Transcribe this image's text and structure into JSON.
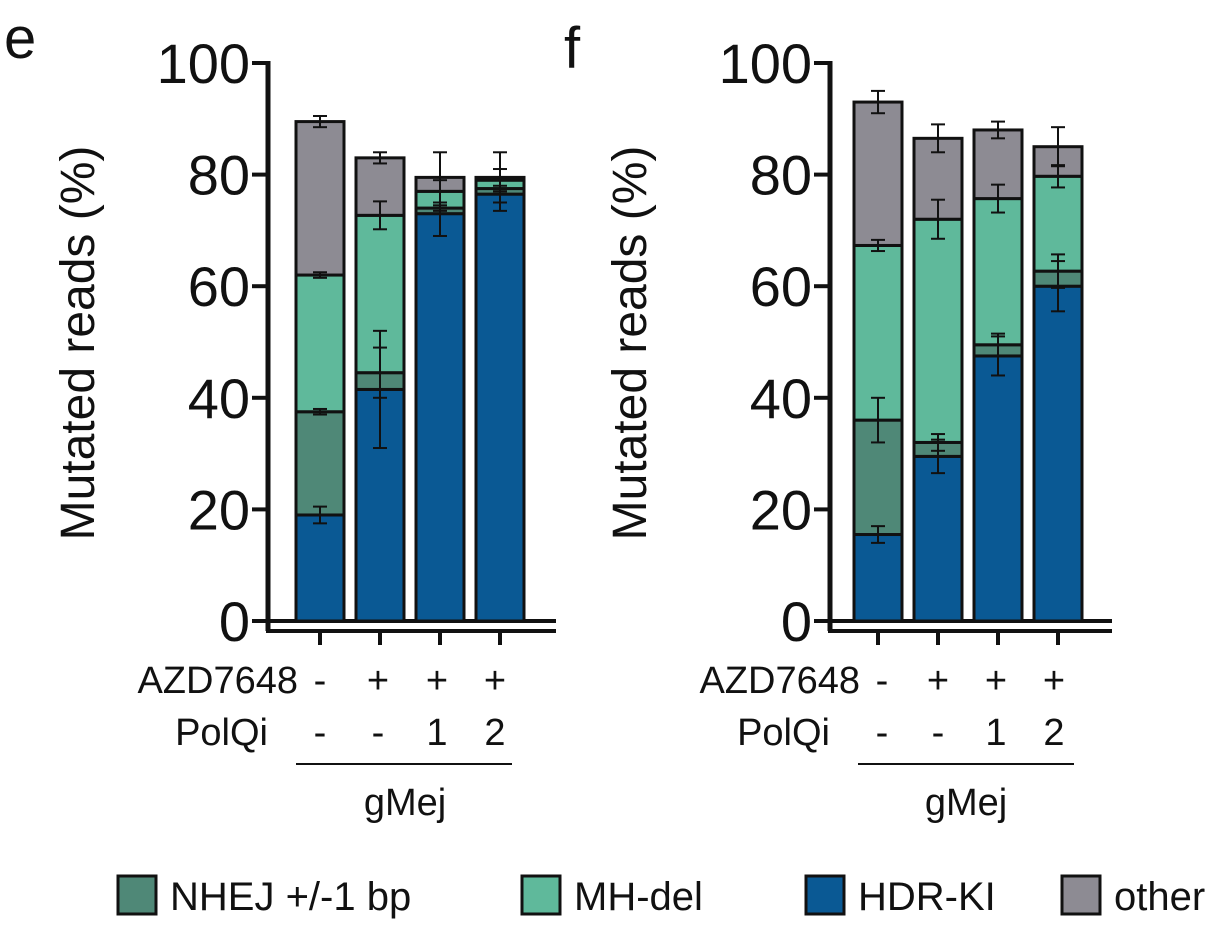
{
  "colors": {
    "NHEJ": "#4f8877",
    "MH-del": "#5fb99b",
    "HDR-KI": "#0a5994",
    "other": "#8d8b93"
  },
  "row_labels": {
    "azd": "AZD7648",
    "polqi": "PolQi"
  },
  "azd_values": [
    "-",
    "+",
    "+",
    "+"
  ],
  "polqi_values": [
    "-",
    "-",
    "1",
    "2"
  ],
  "group_label": "gMej",
  "legend": [
    {
      "key": "NHEJ",
      "label": "NHEJ +/-1 bp"
    },
    {
      "key": "MH-del",
      "label": "MH-del"
    },
    {
      "key": "HDR-KI",
      "label": "HDR-KI"
    },
    {
      "key": "other",
      "label": "other"
    }
  ],
  "chart_data": [
    {
      "panel": "e",
      "type": "bar",
      "stacked": true,
      "ylabel": "Mutated reads (%)",
      "ylim": [
        0,
        100
      ],
      "yticks": [
        0,
        20,
        40,
        60,
        80,
        100
      ],
      "categories": [
        "-/-",
        "+/-",
        "+/1",
        "+/2"
      ],
      "series": [
        {
          "name": "HDR-KI",
          "values": [
            19,
            41.5,
            73,
            76.5
          ],
          "errors": [
            1.5,
            10.5,
            4,
            3
          ]
        },
        {
          "name": "NHEJ +/-1 bp",
          "values": [
            18.5,
            3,
            1,
            1
          ],
          "errors": [
            0.5,
            4.5,
            0.5,
            0.5
          ]
        },
        {
          "name": "MH-del",
          "values": [
            24.5,
            28.2,
            3,
            1.5
          ],
          "errors": [
            0.5,
            2.5,
            2,
            2
          ]
        },
        {
          "name": "other",
          "values": [
            27.5,
            10.3,
            2.5,
            0.5
          ],
          "errors": [
            1,
            1,
            4.5,
            4.5
          ]
        }
      ]
    },
    {
      "panel": "f",
      "type": "bar",
      "stacked": true,
      "ylabel": "Mutated reads (%)",
      "ylim": [
        0,
        100
      ],
      "yticks": [
        0,
        20,
        40,
        60,
        80,
        100
      ],
      "categories": [
        "-/-",
        "+/-",
        "+/1",
        "+/2"
      ],
      "series": [
        {
          "name": "HDR-KI",
          "values": [
            15.5,
            29.5,
            47.5,
            60
          ],
          "errors": [
            1.5,
            3,
            3.5,
            4.5
          ]
        },
        {
          "name": "NHEJ +/-1 bp",
          "values": [
            20.5,
            2.5,
            2,
            2.7
          ],
          "errors": [
            4,
            1.5,
            2,
            3
          ]
        },
        {
          "name": "MH-del",
          "values": [
            31.3,
            40,
            26.2,
            17
          ],
          "errors": [
            1,
            3.5,
            2.5,
            2
          ]
        },
        {
          "name": "other",
          "values": [
            25.7,
            14.5,
            12.3,
            5.3
          ],
          "errors": [
            2,
            2.5,
            1.5,
            3.5
          ]
        }
      ]
    }
  ]
}
